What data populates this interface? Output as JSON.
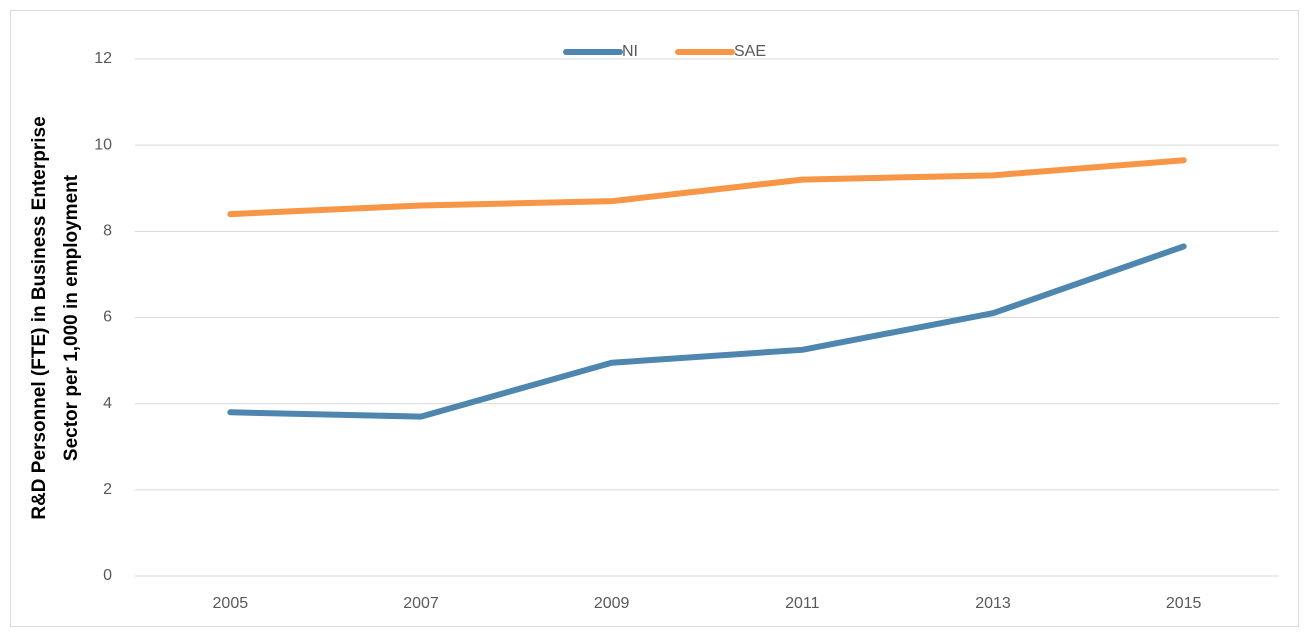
{
  "chart_data": {
    "type": "line",
    "ylabel": [
      "R&D Personnel (FTE) in Business Enterprise",
      "Sector per 1,000 in employment"
    ],
    "categories": [
      "2005",
      "2007",
      "2009",
      "2011",
      "2013",
      "2015"
    ],
    "series": [
      {
        "name": "NI",
        "color": "#4e86b0",
        "values": [
          3.8,
          3.7,
          4.95,
          5.25,
          6.1,
          7.65
        ]
      },
      {
        "name": "SAE",
        "color": "#f79646",
        "values": [
          8.4,
          8.6,
          8.7,
          9.2,
          9.3,
          9.65
        ]
      }
    ],
    "ylim": [
      0,
      12
    ],
    "yticks": [
      0,
      2,
      4,
      6,
      8,
      10,
      12
    ],
    "grid": true,
    "legend": "top"
  }
}
